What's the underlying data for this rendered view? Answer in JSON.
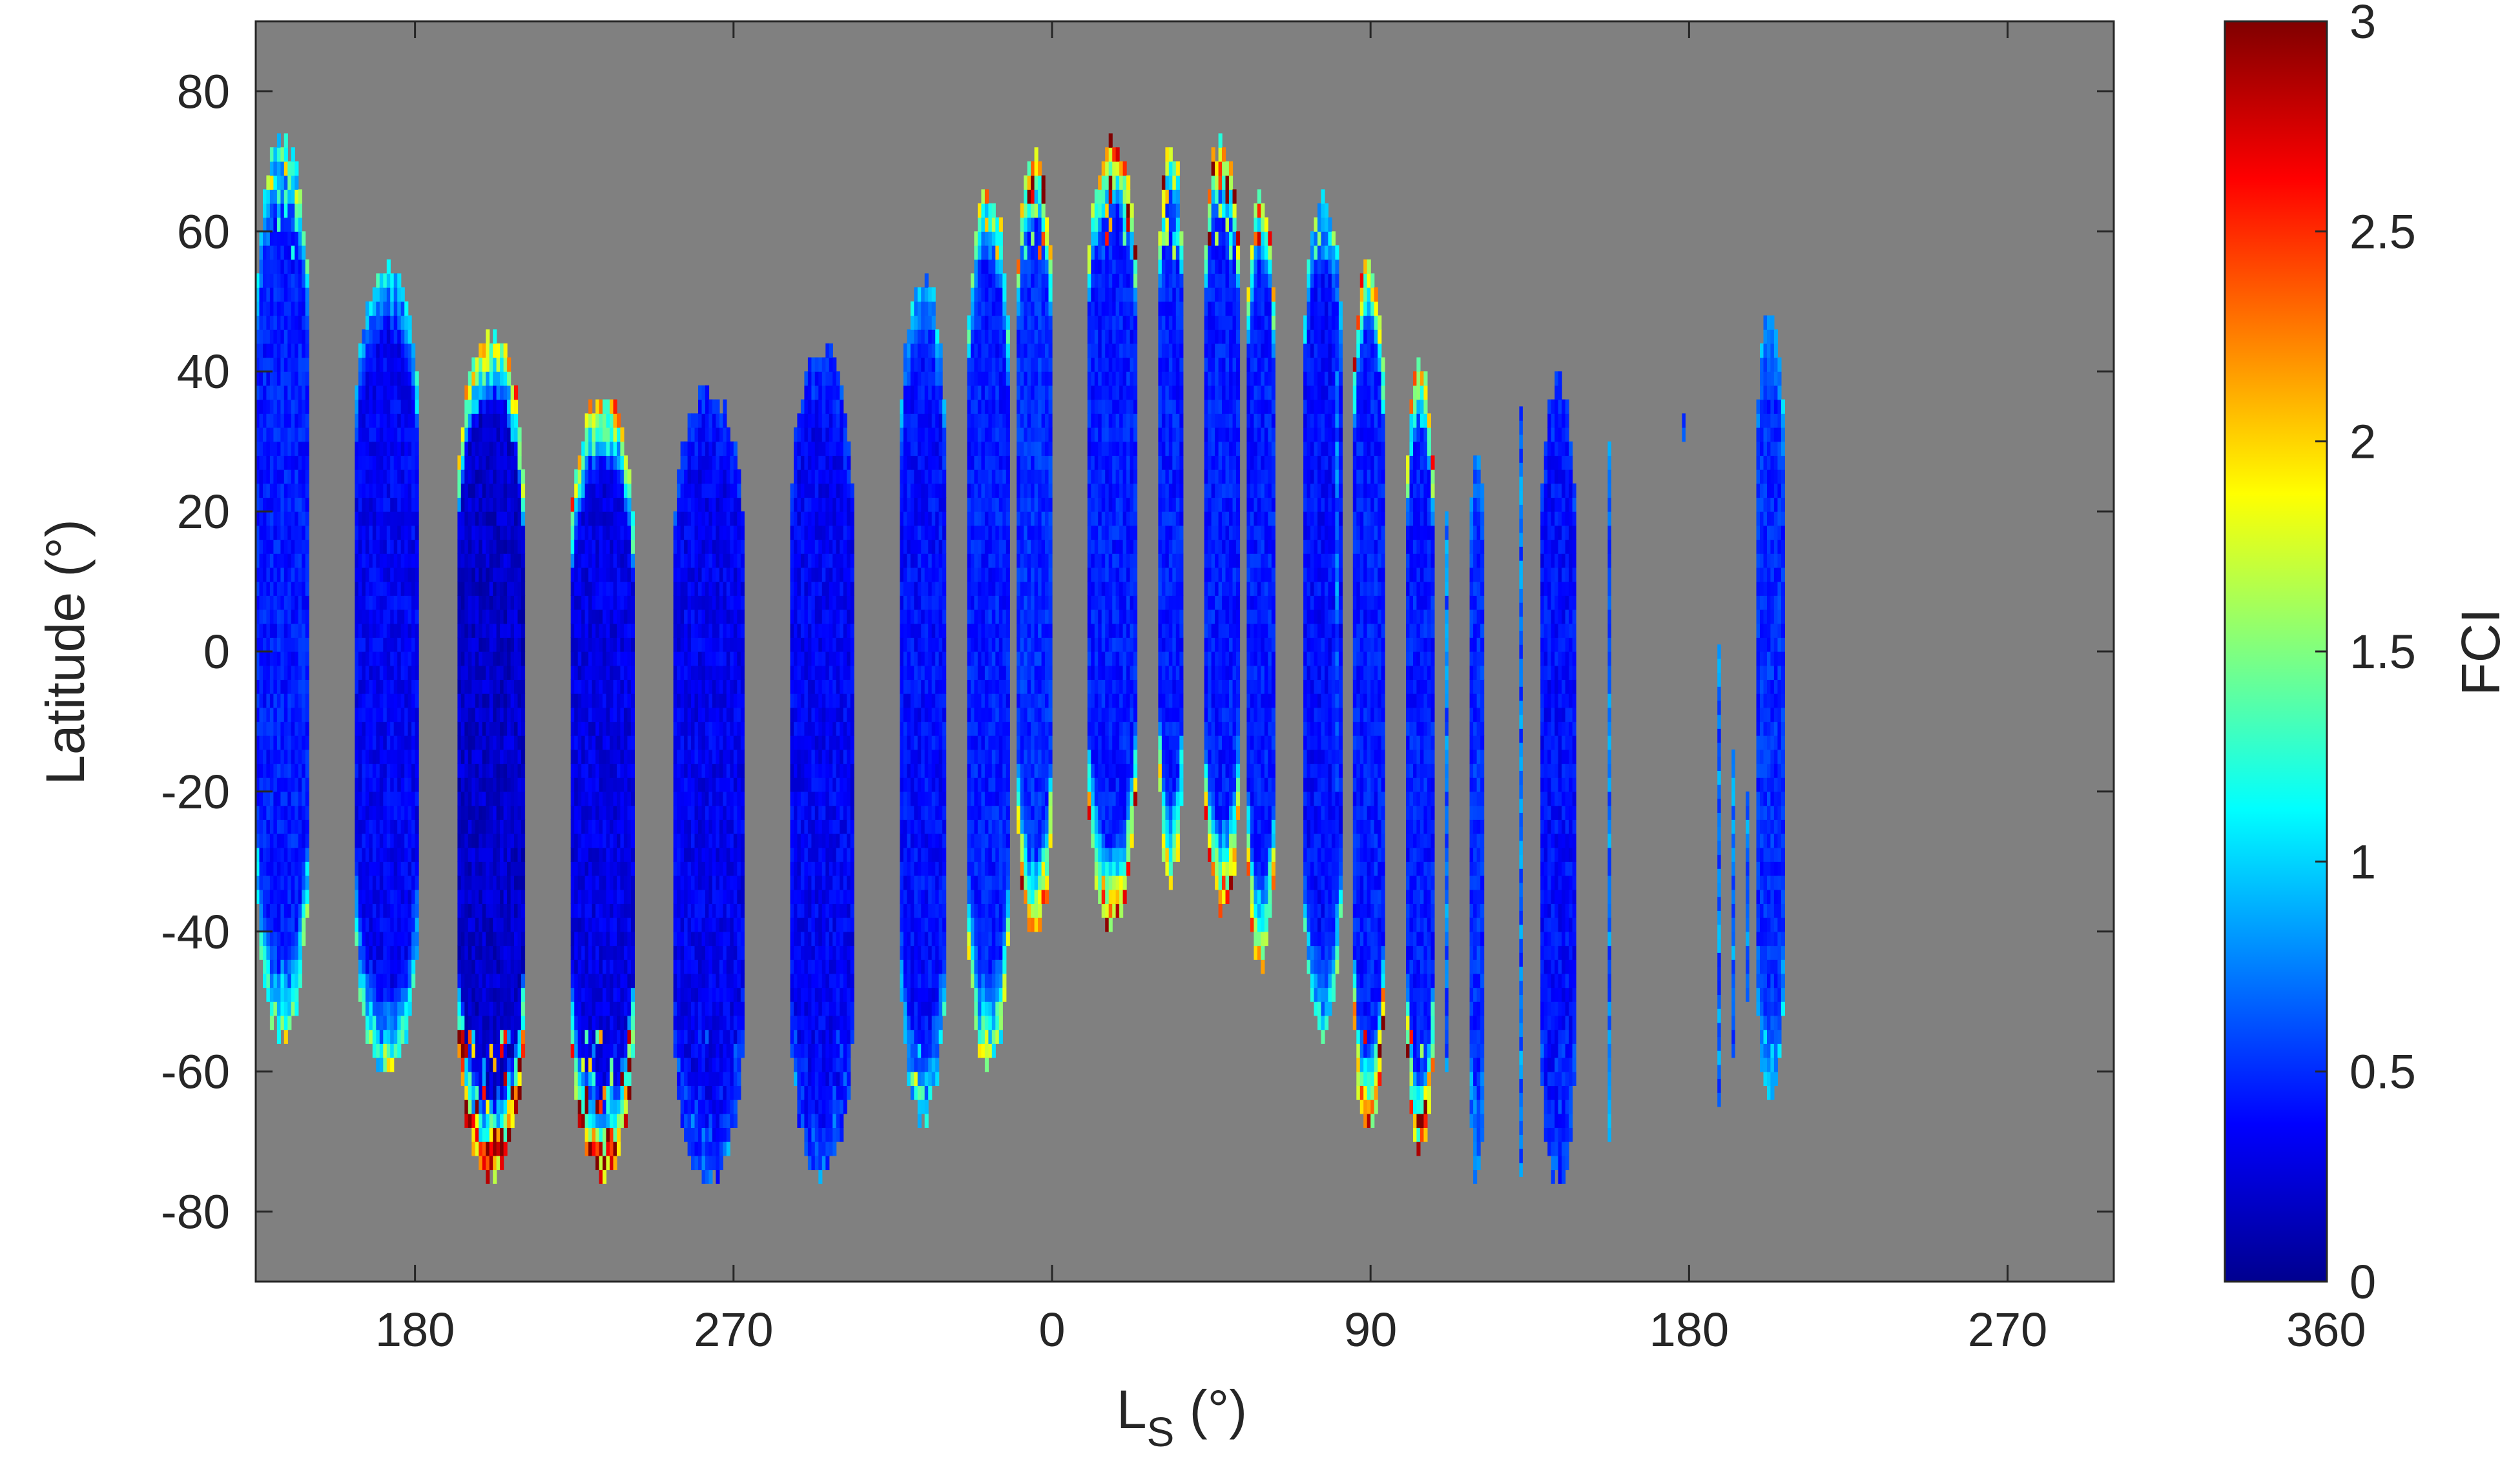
{
  "chart_data": {
    "type": "heatmap",
    "xlabel": "L",
    "xlabel_subscript": "S",
    "xlabel_unit": " (°)",
    "ylabel": "Latitude (°)",
    "colorbar_label": "FCI",
    "colormap": "jet",
    "background_color": "#808080",
    "xlim": [
      135,
      660
    ],
    "ylim": [
      -90,
      90
    ],
    "x_ticks": [
      {
        "value": 180,
        "label": "180"
      },
      {
        "value": 270,
        "label": "270"
      },
      {
        "value": 360,
        "label": "0"
      },
      {
        "value": 450,
        "label": "90"
      },
      {
        "value": 540,
        "label": "180"
      },
      {
        "value": 630,
        "label": "270"
      },
      {
        "value": 720,
        "label": "360"
      }
    ],
    "y_ticks": [
      {
        "value": 80,
        "label": "80"
      },
      {
        "value": 60,
        "label": "60"
      },
      {
        "value": 40,
        "label": "40"
      },
      {
        "value": 20,
        "label": "20"
      },
      {
        "value": 0,
        "label": "0"
      },
      {
        "value": -20,
        "label": "-20"
      },
      {
        "value": -40,
        "label": "-40"
      },
      {
        "value": -60,
        "label": "-60"
      },
      {
        "value": -80,
        "label": "-80"
      }
    ],
    "color_range": [
      0,
      3
    ],
    "colorbar_ticks": [
      {
        "value": 3,
        "label": "3"
      },
      {
        "value": 2.5,
        "label": "2.5"
      },
      {
        "value": 2,
        "label": "2"
      },
      {
        "value": 1.5,
        "label": "1.5"
      },
      {
        "value": 1,
        "label": "1"
      },
      {
        "value": 0.5,
        "label": "0.5"
      },
      {
        "value": 0,
        "label": "0"
      }
    ],
    "swaths": [
      {
        "x_start": 135,
        "x_end": 150,
        "lat_min": -54,
        "lat_max": 72,
        "base_fci": 0.45,
        "edge_fci": 1.6
      },
      {
        "x_start": 163,
        "x_end": 181,
        "lat_min": -59,
        "lat_max": 54,
        "base_fci": 0.35,
        "edge_fci": 1.4
      },
      {
        "x_start": 192,
        "x_end": 211,
        "lat_min": -74,
        "lat_max": 45,
        "base_fci": 0.22,
        "edge_fci": 3.0
      },
      {
        "x_start": 224,
        "x_end": 242,
        "lat_min": -74,
        "lat_max": 36,
        "base_fci": 0.3,
        "edge_fci": 2.8
      },
      {
        "x_start": 253,
        "x_end": 273,
        "lat_min": -74,
        "lat_max": 36,
        "base_fci": 0.33,
        "edge_fci": 0.6
      },
      {
        "x_start": 286,
        "x_end": 304,
        "lat_min": -74,
        "lat_max": 42,
        "base_fci": 0.35,
        "edge_fci": 0.6
      },
      {
        "x_start": 317,
        "x_end": 330,
        "lat_min": -66,
        "lat_max": 52,
        "base_fci": 0.4,
        "edge_fci": 1.2
      },
      {
        "x_start": 336,
        "x_end": 348,
        "lat_min": -58,
        "lat_max": 64,
        "base_fci": 0.45,
        "edge_fci": 1.8
      },
      {
        "x_start": 350,
        "x_end": 360,
        "lat_min": -40,
        "lat_max": 70,
        "base_fci": 0.5,
        "edge_fci": 2.6
      },
      {
        "x_start": 370,
        "x_end": 384,
        "lat_min": -38,
        "lat_max": 72,
        "base_fci": 0.45,
        "edge_fci": 2.8
      },
      {
        "x_start": 390,
        "x_end": 397,
        "lat_min": -32,
        "lat_max": 72,
        "base_fci": 0.45,
        "edge_fci": 2.2
      },
      {
        "x_start": 403,
        "x_end": 413,
        "lat_min": -36,
        "lat_max": 72,
        "base_fci": 0.45,
        "edge_fci": 2.6
      },
      {
        "x_start": 415,
        "x_end": 423,
        "lat_min": -44,
        "lat_max": 64,
        "base_fci": 0.45,
        "edge_fci": 2.4
      },
      {
        "x_start": 431,
        "x_end": 442,
        "lat_min": -54,
        "lat_max": 64,
        "base_fci": 0.4,
        "edge_fci": 1.4
      },
      {
        "x_start": 445,
        "x_end": 454,
        "lat_min": -68,
        "lat_max": 55,
        "base_fci": 0.45,
        "edge_fci": 2.8
      },
      {
        "x_start": 460,
        "x_end": 468,
        "lat_min": -71,
        "lat_max": 40,
        "base_fci": 0.45,
        "edge_fci": 2.8
      },
      {
        "x_start": 478,
        "x_end": 482,
        "lat_min": -75,
        "lat_max": 30,
        "base_fci": 0.5,
        "edge_fci": 0.8
      },
      {
        "x_start": 498,
        "x_end": 508,
        "lat_min": -75,
        "lat_max": 37,
        "base_fci": 0.4,
        "edge_fci": 0.6
      },
      {
        "x_start": 559,
        "x_end": 567,
        "lat_min": -64,
        "lat_max": 47,
        "base_fci": 0.5,
        "edge_fci": 1.0
      }
    ],
    "thin_lines": [
      {
        "x": 440,
        "lat_min": -20,
        "lat_max": 40
      },
      {
        "x": 471,
        "lat_min": -60,
        "lat_max": 20
      },
      {
        "x": 492,
        "lat_min": -75,
        "lat_max": 35
      },
      {
        "x": 517,
        "lat_min": -70,
        "lat_max": 30
      },
      {
        "x": 538,
        "lat_min": 30,
        "lat_max": 33
      },
      {
        "x": 548,
        "lat_min": -65,
        "lat_max": 0
      },
      {
        "x": 552,
        "lat_min": -58,
        "lat_max": -15
      },
      {
        "x": 556,
        "lat_min": -50,
        "lat_max": -20
      }
    ]
  }
}
